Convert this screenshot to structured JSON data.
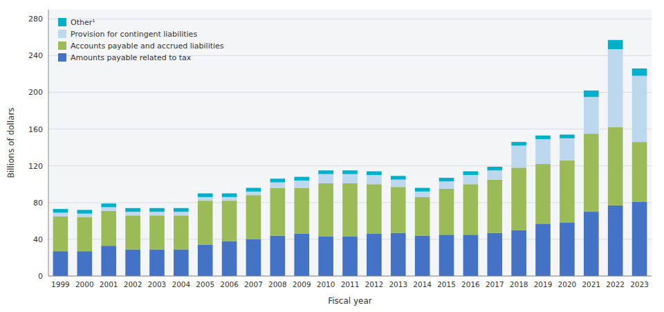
{
  "chart_data": {
    "type": "bar",
    "stacked": true,
    "xlabel": "Fiscal year",
    "ylabel": "Billions of dollars",
    "categories": [
      "1999",
      "2000",
      "2001",
      "2002",
      "2003",
      "2004",
      "2005",
      "2006",
      "2007",
      "2008",
      "2009",
      "2010",
      "2011",
      "2012",
      "2013",
      "2014",
      "2015",
      "2016",
      "2017",
      "2018",
      "2019",
      "2020",
      "2021",
      "2022",
      "2023"
    ],
    "series": [
      {
        "name": "Amounts payable related to tax",
        "color": "#4472C4",
        "values": [
          27,
          27,
          33,
          29,
          29,
          29,
          34,
          38,
          40,
          44,
          46,
          43,
          43,
          46,
          47,
          44,
          45,
          45,
          47,
          50,
          57,
          58,
          70,
          77,
          81
        ]
      },
      {
        "name": "Accounts payable and accrued liabilities",
        "color": "#9BBB59",
        "values": [
          38,
          37,
          38,
          37,
          37,
          37,
          48,
          44,
          48,
          52,
          50,
          58,
          58,
          54,
          50,
          42,
          50,
          55,
          58,
          68,
          65,
          68,
          85,
          85,
          65
        ]
      },
      {
        "name": "Provision for contingent liabilities",
        "color": "#BDD7EE",
        "values": [
          4,
          4,
          4,
          4,
          4,
          4,
          4,
          4,
          4,
          6,
          8,
          10,
          10,
          10,
          8,
          6,
          8,
          10,
          10,
          24,
          27,
          24,
          40,
          85,
          72
        ]
      },
      {
        "name": "Other¹",
        "color": "#00B0C8",
        "values": [
          4,
          4,
          4,
          4,
          4,
          4,
          4,
          4,
          4,
          4,
          4,
          4,
          4,
          4,
          4,
          4,
          4,
          4,
          4,
          4,
          4,
          4,
          7,
          10,
          8
        ]
      }
    ],
    "ylim": [
      0,
      290
    ],
    "yticks": [
      0,
      40,
      80,
      120,
      160,
      200,
      240,
      280
    ],
    "grid": true,
    "legend": "upper left"
  }
}
